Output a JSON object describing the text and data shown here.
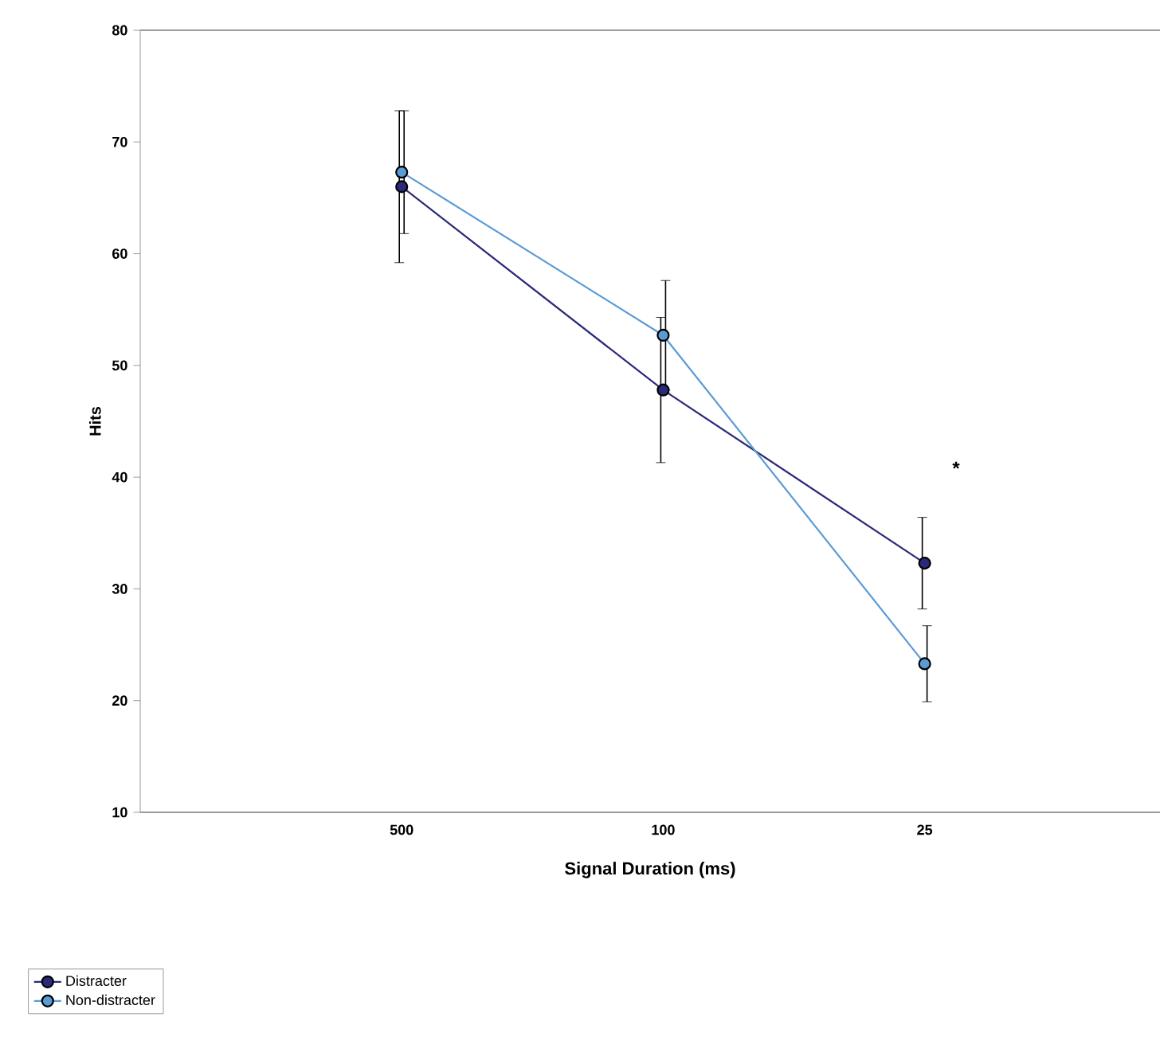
{
  "chart_data": {
    "type": "line",
    "xlabel": "Signal Duration (ms)",
    "ylabel": "Hits",
    "categories": [
      "500",
      "100",
      "25"
    ],
    "series": [
      {
        "name": "Distracter",
        "color": "#2b2a7a",
        "values": [
          66,
          47.8,
          32.3
        ],
        "errors": [
          6.8,
          6.5,
          4.1
        ]
      },
      {
        "name": "Non-distracter",
        "color": "#5b9bd5",
        "values": [
          67.3,
          52.7,
          23.3
        ],
        "errors": [
          5.5,
          4.9,
          3.4
        ]
      }
    ],
    "ylim": [
      10,
      80
    ],
    "yticks": [
      10,
      20,
      30,
      40,
      50,
      60,
      70,
      80
    ],
    "annotations": [
      "*"
    ],
    "legend": "bottom left",
    "marker": "circle",
    "line_style": "solid",
    "grid": false
  }
}
